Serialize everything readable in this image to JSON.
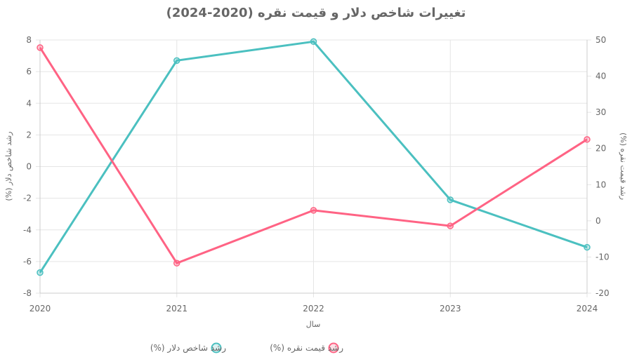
{
  "chart_data": {
    "type": "line",
    "title": "تغییرات شاخص دلار و قیمت نقره (2020-2024)",
    "xlabel": "سال",
    "ylabel_left": "رشد شاخص دلار (%)",
    "ylabel_right": "رشد قیمت نقره (%)",
    "categories": [
      "2020",
      "2021",
      "2022",
      "2023",
      "2024"
    ],
    "y_left": {
      "min": -8,
      "max": 8,
      "step": 2,
      "ticks": [
        "8",
        "6",
        "4",
        "2",
        "0",
        "-2",
        "-4",
        "-6",
        "-8"
      ]
    },
    "y_right": {
      "min": -20,
      "max": 50,
      "step": 10,
      "ticks": [
        "50",
        "40",
        "30",
        "20",
        "10",
        "0",
        "-10",
        "-20"
      ]
    },
    "series": [
      {
        "name": "رشد شاخص دلار (%)",
        "axis": "left",
        "color": "#4BC0C0",
        "values": [
          -6.7,
          6.7,
          7.9,
          -2.1,
          -5.1
        ]
      },
      {
        "name": "رشد قیمت نقره (%)",
        "axis": "right",
        "color": "#FF6384",
        "values": [
          47.9,
          -11.7,
          2.9,
          -1.4,
          22.5
        ]
      }
    ],
    "grid": true,
    "legend": "bottom"
  }
}
